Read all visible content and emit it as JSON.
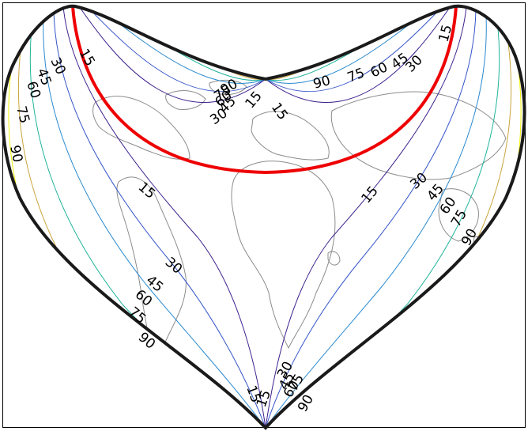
{
  "map": {
    "projection_shape": "heart",
    "contour_colors": {
      "15": "#3b1f8c",
      "30": "#3555c9",
      "45": "#2a8ad0",
      "60": "#1fb39a",
      "75": "#c9a43c",
      "90": "#f2f20a"
    },
    "outline_color": "#1a1a1a",
    "red_circle_color": "#ee0000",
    "coastline_color": "#8c8c8c"
  },
  "labels": {
    "left_15": "15",
    "left_30": "30",
    "left_45": "45",
    "left_60": "60",
    "left_75": "75",
    "left_90": "90",
    "right_15": "15",
    "right_30": "30",
    "right_45": "45",
    "right_60": "60",
    "right_75": "75",
    "right_90": "90",
    "ew_15": "15",
    "ew_30": "30",
    "ew_45": "45",
    "ew_60": "60",
    "ew_75": "75",
    "ew_90": "90",
    "mid_15_l": "15",
    "mid_15_r": "15",
    "notch_15": "15",
    "notch_30": "30",
    "notch_45": "45",
    "notch_60": "60",
    "notch_75": "75",
    "notch_90": "90",
    "sw_15": "15",
    "sw_30": "30",
    "sw_45": "45",
    "sw_60": "60",
    "sw_75": "75",
    "sw_90": "90",
    "bot_15a": "15",
    "bot_15b": "15",
    "bot_30": "30",
    "bot_45": "45",
    "bot_60": "60",
    "bot_75": "75",
    "bot_90": "90"
  }
}
